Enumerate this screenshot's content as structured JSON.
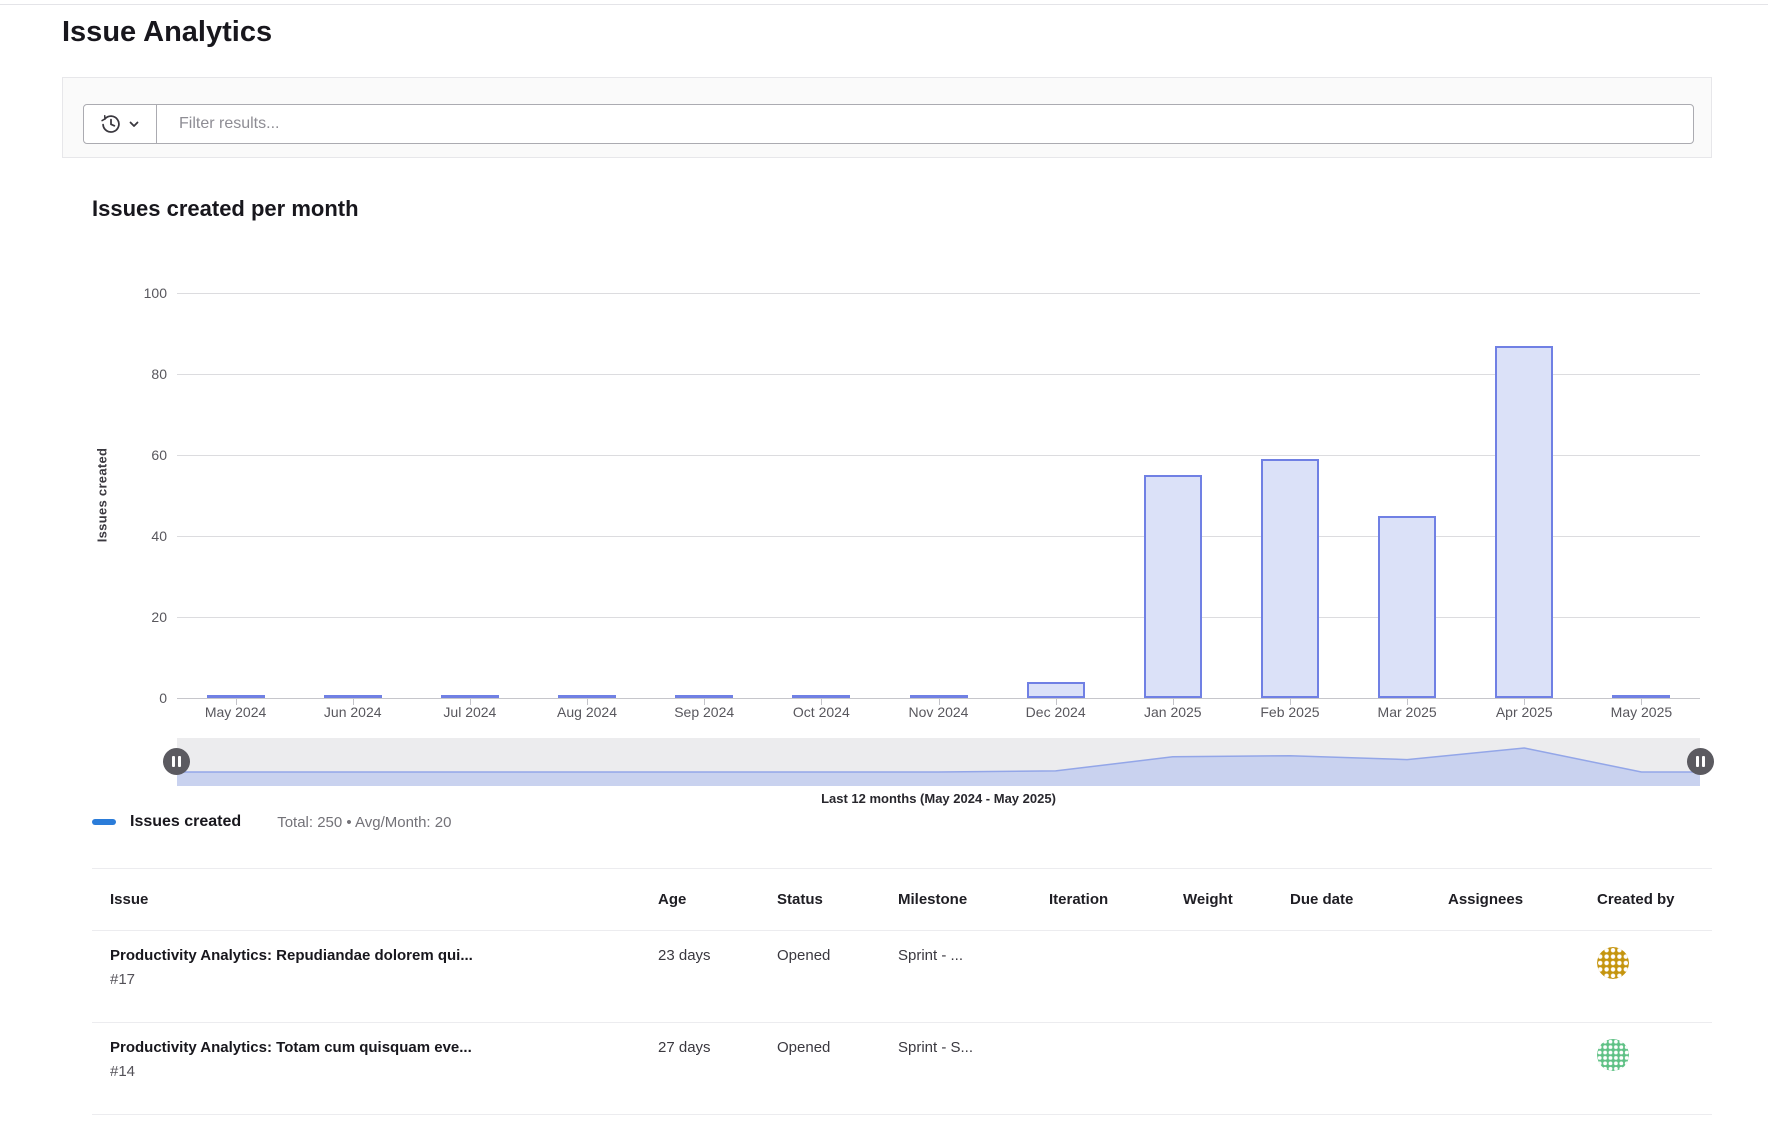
{
  "header": {
    "title": "Issue Analytics"
  },
  "filter": {
    "placeholder": "Filter results...",
    "history_icon": "history-clock-icon",
    "chevron_icon": "chevron-down-icon"
  },
  "chart_data": {
    "type": "bar",
    "title": "Issues created per month",
    "xlabel": "",
    "ylabel": "Issues created",
    "categories": [
      "May 2024",
      "Jun 2024",
      "Jul 2024",
      "Aug 2024",
      "Sep 2024",
      "Oct 2024",
      "Nov 2024",
      "Dec 2024",
      "Jan 2025",
      "Feb 2025",
      "Mar 2025",
      "Apr 2025",
      "May 2025"
    ],
    "values": [
      0,
      0,
      0,
      0,
      0,
      0,
      0,
      4,
      55,
      59,
      45,
      87,
      0
    ],
    "series_name": "Issues created",
    "ylim": [
      0,
      100
    ],
    "yticks": [
      0,
      20,
      40,
      60,
      80,
      100
    ],
    "grid": true,
    "legend_position": "bottom-left",
    "bar_fill": "#dbe1f8",
    "bar_border": "#7080e4",
    "zoom_area_fill": "#c9d2ef",
    "zoom_line_color": "#93a6e8",
    "range_caption": "Last 12 months (May 2024 - May 2025)"
  },
  "legend": {
    "label": "Issues created",
    "summary": "Total: 250 • Avg/Month: 20",
    "swatch_color": "#2b7cd9"
  },
  "table": {
    "columns": [
      "Issue",
      "Age",
      "Status",
      "Milestone",
      "Iteration",
      "Weight",
      "Due date",
      "Assignees",
      "Created by"
    ],
    "rows": [
      {
        "title": "Productivity Analytics: Repudiandae dolorem qui...",
        "ref": "#17",
        "age": "23 days",
        "status": "Opened",
        "milestone": "Sprint - ...",
        "iteration": "",
        "weight": "",
        "due_date": "",
        "assignees": "",
        "created_by_avatar": "gold-identicon-avatar",
        "avatar_color": "#c5950f"
      },
      {
        "title": "Productivity Analytics: Totam cum quisquam eve...",
        "ref": "#14",
        "age": "27 days",
        "status": "Opened",
        "milestone": "Sprint - S...",
        "iteration": "",
        "weight": "",
        "due_date": "",
        "assignees": "",
        "created_by_avatar": "green-identicon-avatar",
        "avatar_color": "#5fc185"
      }
    ]
  }
}
